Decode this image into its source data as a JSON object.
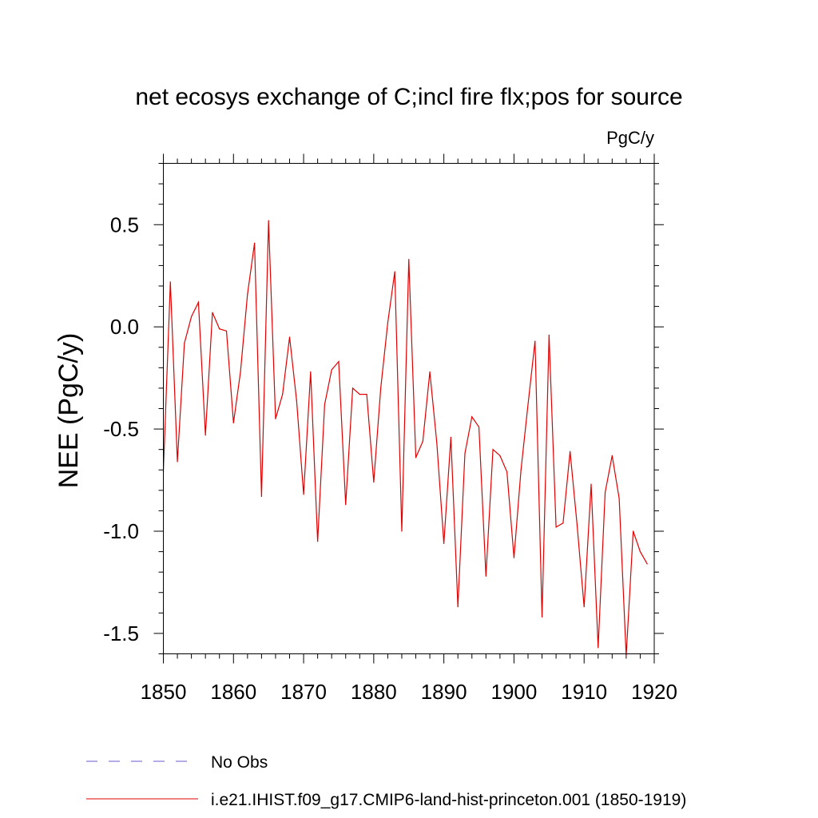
{
  "chart_data": {
    "type": "line",
    "title": "net ecosys exchange of C;incl fire flx;pos for source",
    "units": "PgC/y",
    "xlabel": "",
    "ylabel": "NEE  (PgC/y)",
    "xlim": [
      1850,
      1920
    ],
    "ylim": [
      -1.6,
      0.8
    ],
    "xticks": [
      "1850",
      "1860",
      "1870",
      "1880",
      "1890",
      "1900",
      "1910",
      "1920"
    ],
    "yticks": [
      "0.5",
      "0.0",
      "-0.5",
      "-1.0",
      "-1.5"
    ],
    "grid": false,
    "legend_position": "bottom",
    "series": [
      {
        "name": "No Obs",
        "color": "#6a5acd",
        "style": "dashed",
        "x": [],
        "values": []
      },
      {
        "name": "i.e21.IHIST.f09_g17.CMIP6-land-hist-princeton.001 (1850-1919)",
        "color": "#e00000",
        "style": "solid",
        "x": [
          1850,
          1851,
          1852,
          1853,
          1854,
          1855,
          1856,
          1857,
          1858,
          1859,
          1860,
          1861,
          1862,
          1863,
          1864,
          1865,
          1866,
          1867,
          1868,
          1869,
          1870,
          1871,
          1872,
          1873,
          1874,
          1875,
          1876,
          1877,
          1878,
          1879,
          1880,
          1881,
          1882,
          1883,
          1884,
          1885,
          1886,
          1887,
          1888,
          1889,
          1890,
          1891,
          1892,
          1893,
          1894,
          1895,
          1896,
          1897,
          1898,
          1899,
          1900,
          1901,
          1902,
          1903,
          1904,
          1905,
          1906,
          1907,
          1908,
          1909,
          1910,
          1911,
          1912,
          1913,
          1914,
          1915,
          1916,
          1917,
          1918,
          1919
        ],
        "values": [
          -0.71,
          0.22,
          -0.66,
          -0.08,
          0.05,
          0.12,
          -0.53,
          0.07,
          -0.01,
          -0.02,
          -0.47,
          -0.22,
          0.16,
          0.41,
          -0.83,
          0.52,
          -0.45,
          -0.33,
          -0.05,
          -0.36,
          -0.82,
          -0.22,
          -1.05,
          -0.38,
          -0.21,
          -0.17,
          -0.87,
          -0.3,
          -0.33,
          -0.33,
          -0.76,
          -0.3,
          0.02,
          0.27,
          -1.0,
          0.33,
          -0.64,
          -0.56,
          -0.22,
          -0.57,
          -1.06,
          -0.54,
          -1.37,
          -0.62,
          -0.44,
          -0.49,
          -1.22,
          -0.6,
          -0.63,
          -0.71,
          -1.13,
          -0.7,
          -0.38,
          -0.07,
          -1.42,
          -0.04,
          -0.98,
          -0.96,
          -0.61,
          -0.97,
          -1.37,
          -0.77,
          -1.57,
          -0.81,
          -0.63,
          -0.84,
          -1.61,
          -1.0,
          -1.1,
          -1.16
        ]
      }
    ]
  }
}
